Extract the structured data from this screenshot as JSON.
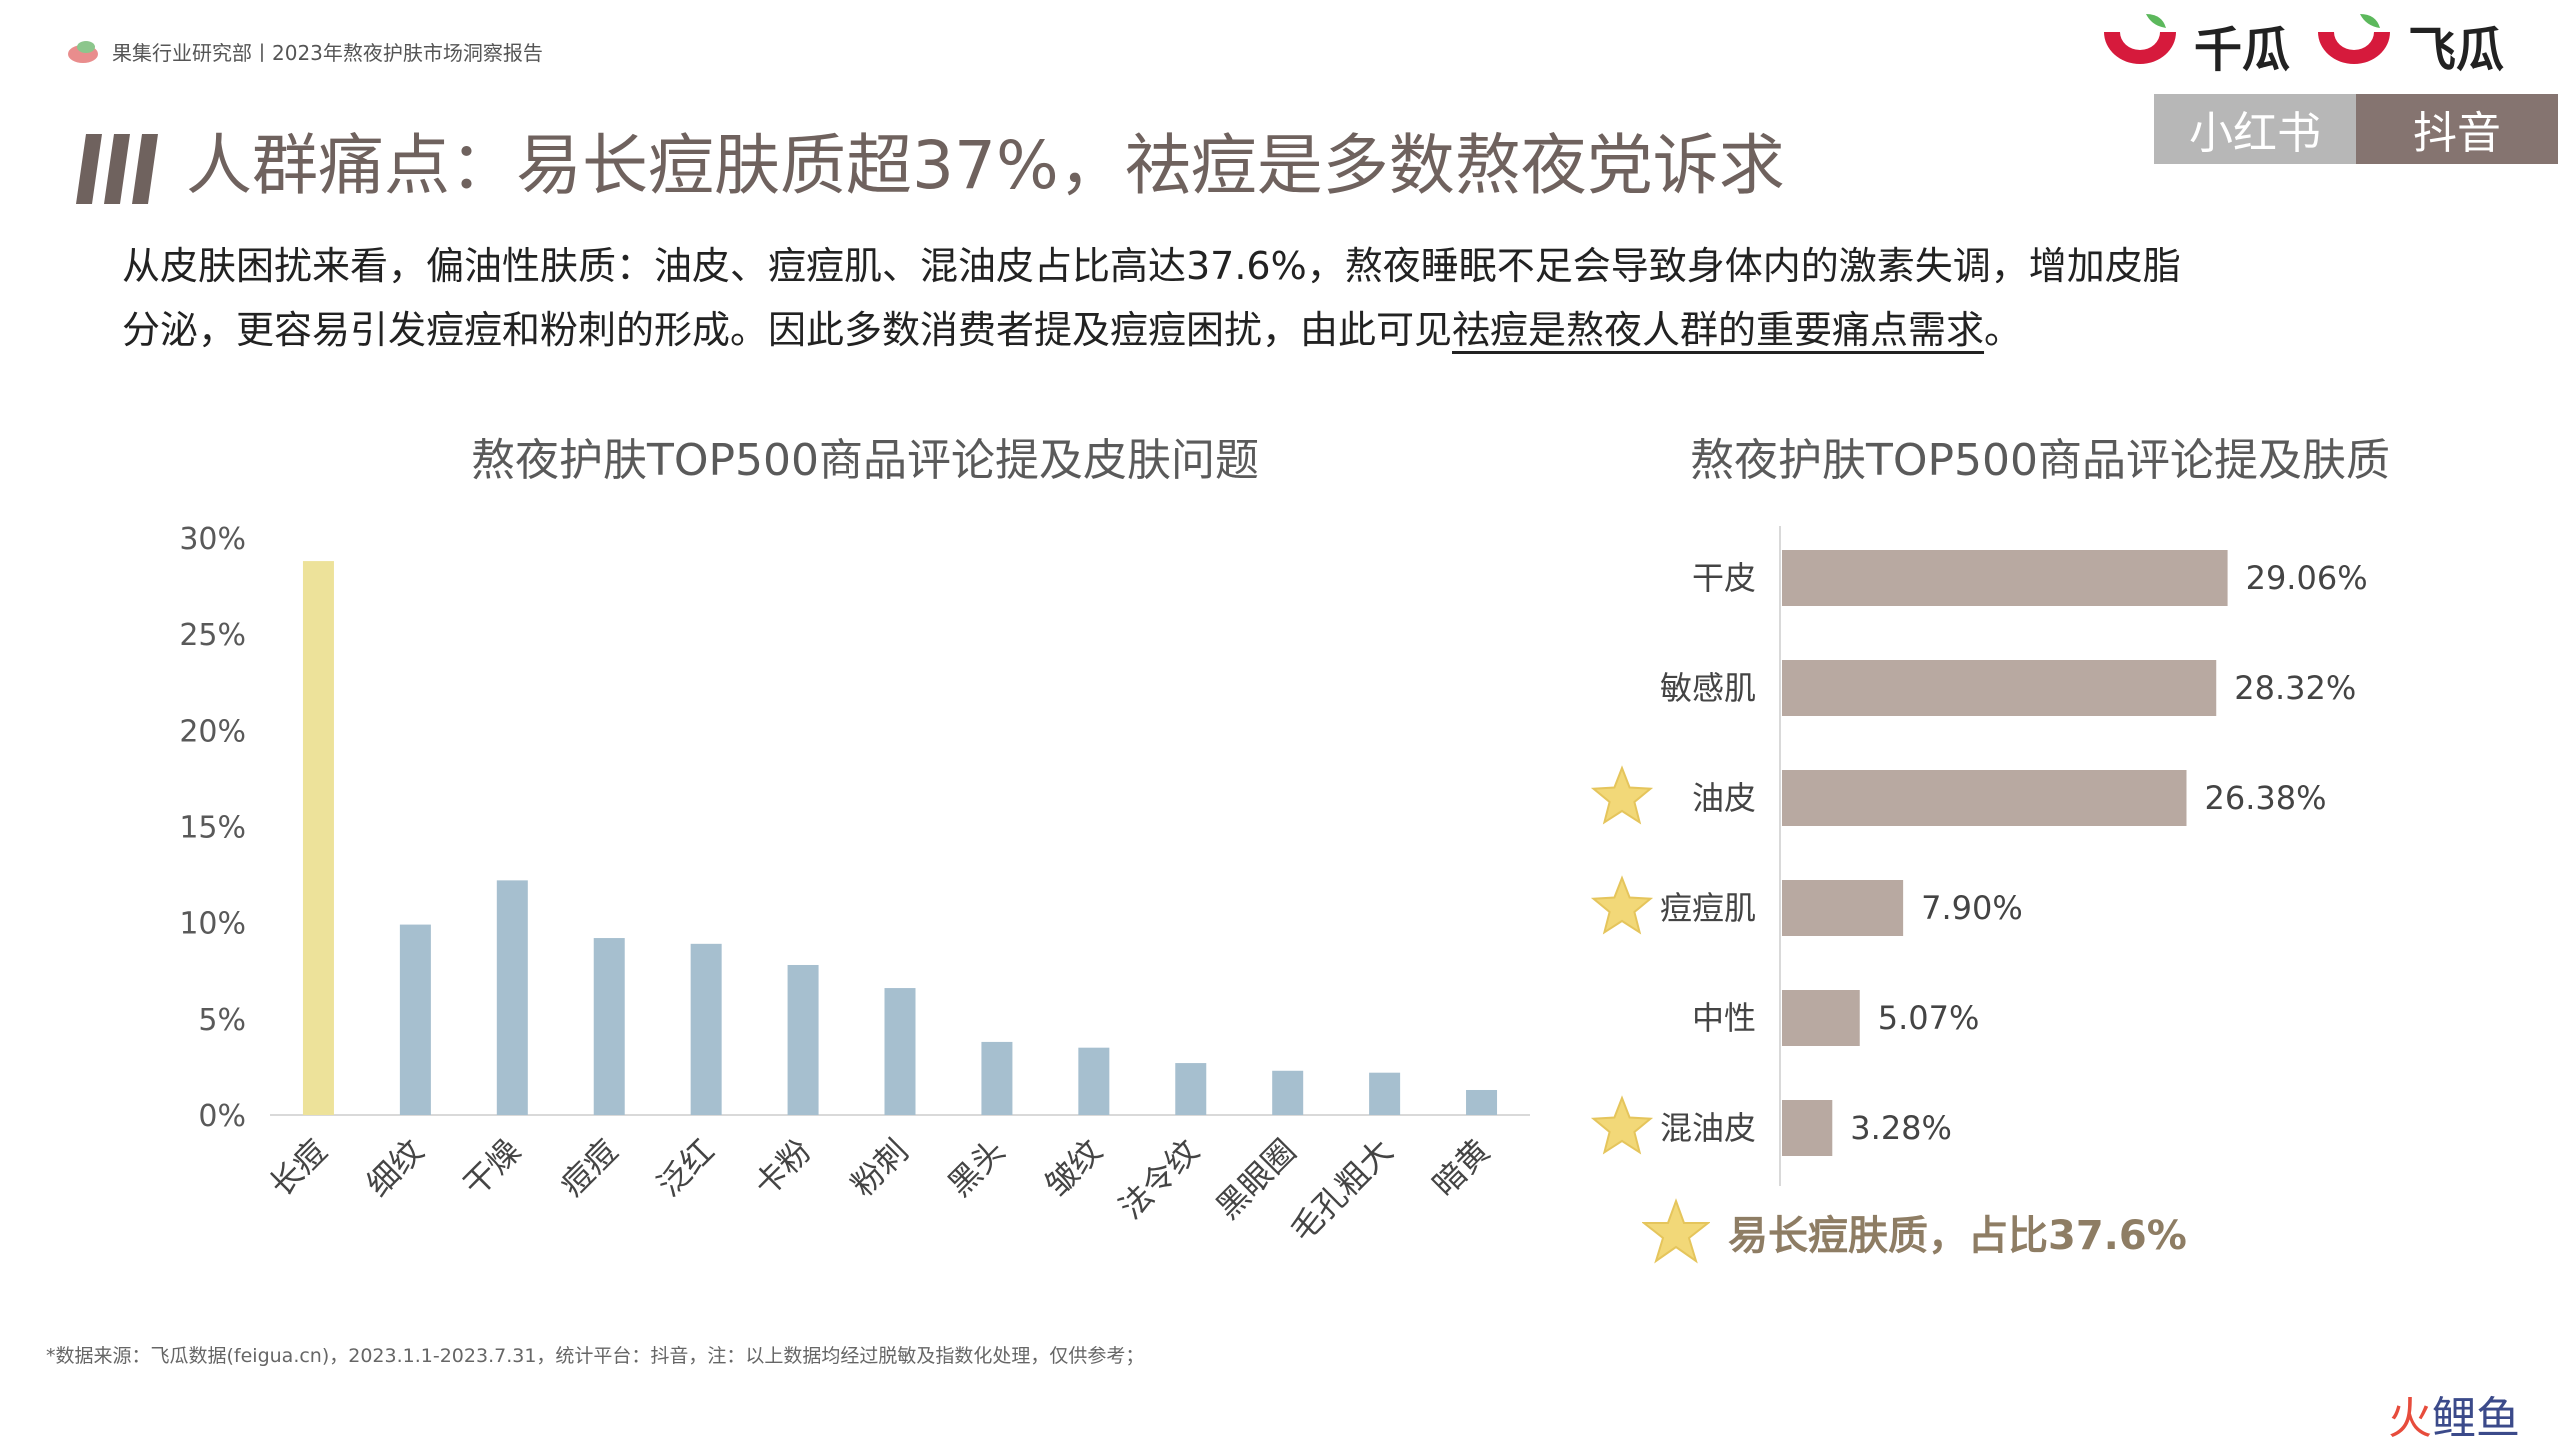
{
  "header": {
    "brand_text": "果集行业研究部丨2023年熬夜护肤市场洞察报告",
    "title": "人群痛点：易长痘肤质超37%，祛痘是多数熬夜党诉求",
    "logos": [
      {
        "text": "千瓜",
        "icon": "qiangua-logo-icon"
      },
      {
        "text": "飞瓜",
        "icon": "feigua-logo-icon"
      }
    ],
    "platforms": [
      "小红书",
      "抖音"
    ]
  },
  "summary": {
    "line1": "从皮肤困扰来看，偏油性肤质：油皮、痘痘肌、混油皮占比高达37.6%，熬夜睡眠不足会导致身体内的激素失调，增加皮脂",
    "line2_plain": "分泌，更容易引发痘痘和粉刺的形成。因此多数消费者提及痘痘困扰，由此可见",
    "line2_underlined": "祛痘是熬夜人群的重要痛点需求",
    "line2_end": "。"
  },
  "chart_data": [
    {
      "type": "bar",
      "title": "熬夜护肤TOP500商品评论提及皮肤问题",
      "categories": [
        "长痘",
        "细纹",
        "干燥",
        "痘痘",
        "泛红",
        "卡粉",
        "粉刺",
        "黑头",
        "皱纹",
        "法令纹",
        "黑眼圈",
        "毛孔粗大",
        "暗黄"
      ],
      "values": [
        28.8,
        9.9,
        12.2,
        9.2,
        8.9,
        7.8,
        6.6,
        3.8,
        3.5,
        2.7,
        2.3,
        2.2,
        1.3
      ],
      "highlight_index": 0,
      "ylim": [
        0,
        30
      ],
      "yticks": [
        "0%",
        "5%",
        "10%",
        "15%",
        "20%",
        "25%",
        "30%"
      ],
      "colors": {
        "highlight": "#ede29a",
        "bar": "#a6bfcf"
      }
    },
    {
      "type": "bar",
      "orientation": "horizontal",
      "title": "熬夜护肤TOP500商品评论提及肤质",
      "categories": [
        "干皮",
        "敏感肌",
        "油皮",
        "痘痘肌",
        "中性",
        "混油皮"
      ],
      "values": [
        29.06,
        28.32,
        26.38,
        7.9,
        5.07,
        3.28
      ],
      "value_labels": [
        "29.06%",
        "28.32%",
        "26.38%",
        "7.90%",
        "5.07%",
        "3.28%"
      ],
      "starred": [
        false,
        false,
        true,
        true,
        false,
        true
      ],
      "xlim": [
        0,
        30
      ],
      "colors": {
        "bar": "#b8a9a1",
        "star": "#f2d878"
      }
    }
  ],
  "highlight": {
    "text": "易长痘肤质，占比37.6%",
    "icon": "star-icon"
  },
  "footnote": "*数据来源：飞瓜数据(feigua.cn)，2023.1.1-2023.7.31，统计平台：抖音，注：以上数据均经过脱敏及指数化处理，仅供参考；",
  "credit": {
    "part1": "火",
    "part2": "鲤鱼"
  },
  "colors": {
    "title": "#6f625e",
    "tab_left": "#b7b7b7",
    "tab_right": "#857470",
    "logo_red": "#d61a3c",
    "logo_green": "#5cb85c"
  }
}
